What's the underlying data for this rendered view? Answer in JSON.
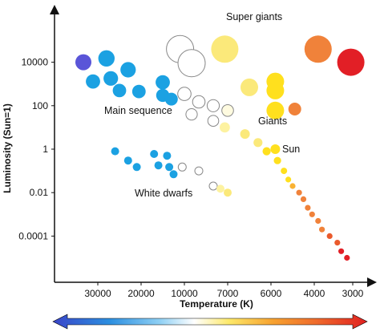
{
  "chart_data": {
    "type": "scatter",
    "xlabel": "Temperature (K)",
    "ylabel": "Luminosity (Sun=1)",
    "x_scale": "reversed",
    "y_scale": "log",
    "x_ticks": [
      30000,
      20000,
      10000,
      7000,
      6000,
      4000,
      3000
    ],
    "x_tick_labels": [
      "30000",
      "20000",
      "10000",
      "7000",
      "6000",
      "4000",
      "3000"
    ],
    "y_ticks": [
      0.0001,
      0.01,
      1,
      100,
      10000
    ],
    "y_tick_labels": [
      "0.0001",
      "0.01",
      "1",
      "100",
      "10000"
    ],
    "grid": false,
    "annotations": [
      "Super giants",
      "Main sequence",
      "Giants",
      "Sun",
      "White dwarfs"
    ],
    "colorbar": {
      "from_color": "#3050c8",
      "to_color": "#e02020",
      "direction": "hot to cool, both ends arrowed"
    },
    "groups": [
      {
        "label": "Super giants",
        "points": [
          {
            "x": 11000,
            "y": 40000,
            "r": "large",
            "color": "#ffffff"
          },
          {
            "x": 9500,
            "y": 9000,
            "r": "large",
            "color": "#ffffff"
          },
          {
            "x": 7200,
            "y": 40000,
            "r": "large",
            "color": "#fbe97a"
          },
          {
            "x": 3900,
            "y": 40000,
            "r": "large",
            "color": "#f0823a"
          },
          {
            "x": 3050,
            "y": 10000,
            "r": "large",
            "color": "#e21f26"
          }
        ]
      },
      {
        "label": "Giants",
        "points": [
          {
            "x": 6500,
            "y": 700,
            "r": "medium",
            "color": "#fbe97a"
          },
          {
            "x": 5800,
            "y": 1300,
            "r": "medium",
            "color": "#ffe01e"
          },
          {
            "x": 5800,
            "y": 500,
            "r": "medium",
            "color": "#ffe01e"
          },
          {
            "x": 5800,
            "y": 60,
            "r": "medium",
            "color": "#ffe01e"
          },
          {
            "x": 4900,
            "y": 70,
            "r": "small",
            "color": "#f0823a"
          }
        ]
      },
      {
        "label": "Main sequence",
        "points": [
          {
            "x": 33000,
            "y": 10000,
            "color": "#5a55d8"
          },
          {
            "x": 28000,
            "y": 15000,
            "color": "#1ba1e2"
          },
          {
            "x": 23000,
            "y": 4500,
            "color": "#1ba1e2"
          },
          {
            "x": 31000,
            "y": 1300,
            "color": "#1ba1e2"
          },
          {
            "x": 25000,
            "y": 500,
            "color": "#1ba1e2"
          },
          {
            "x": 20500,
            "y": 450,
            "color": "#1ba1e2"
          },
          {
            "x": 27000,
            "y": 1800,
            "color": "#1ba1e2"
          },
          {
            "x": 15000,
            "y": 1200,
            "color": "#1ba1e2"
          },
          {
            "x": 15000,
            "y": 300,
            "color": "#1ba1e2"
          },
          {
            "x": 13000,
            "y": 200,
            "color": "#1ba1e2"
          },
          {
            "x": 10000,
            "y": 350,
            "color": "#ffffff"
          },
          {
            "x": 9000,
            "y": 150,
            "color": "#ffffff"
          },
          {
            "x": 8000,
            "y": 100,
            "color": "#ffffff"
          },
          {
            "x": 7000,
            "y": 60,
            "color": "#fffbe0"
          },
          {
            "x": 9500,
            "y": 40,
            "color": "#ffffff"
          },
          {
            "x": 8000,
            "y": 20,
            "color": "#ffffff"
          },
          {
            "x": 7200,
            "y": 10,
            "color": "#fdf2a0"
          },
          {
            "x": 6600,
            "y": 5,
            "color": "#fbe97a"
          },
          {
            "x": 6300,
            "y": 2,
            "color": "#fbe97a"
          },
          {
            "x": 6100,
            "y": 0.8,
            "color": "#ffe01e"
          },
          {
            "x": 5700,
            "y": 0.3,
            "color": "#ffe01e"
          },
          {
            "x": 5400,
            "y": 0.1,
            "color": "#ffe01e"
          },
          {
            "x": 5200,
            "y": 0.04,
            "color": "#ffe01e"
          },
          {
            "x": 5000,
            "y": 0.02,
            "color": "#f9b233"
          },
          {
            "x": 4700,
            "y": 0.01,
            "color": "#f0823a"
          },
          {
            "x": 4500,
            "y": 0.005,
            "color": "#f0823a"
          },
          {
            "x": 4300,
            "y": 0.002,
            "color": "#f0823a"
          },
          {
            "x": 4100,
            "y": 0.001,
            "color": "#f0823a"
          },
          {
            "x": 3900,
            "y": 0.0005,
            "color": "#f0823a"
          },
          {
            "x": 3800,
            "y": 0.0002,
            "color": "#f0823a"
          },
          {
            "x": 3600,
            "y": 0.0001,
            "color": "#ea5a2c"
          },
          {
            "x": 3400,
            "y": 5e-05,
            "color": "#ea5a2c"
          },
          {
            "x": 3300,
            "y": 2e-05,
            "color": "#e21f26"
          },
          {
            "x": 3150,
            "y": 1e-05,
            "color": "#e21f26"
          }
        ]
      },
      {
        "label": "Sun",
        "points": [
          {
            "x": 5800,
            "y": 1,
            "color": "#ffe01e"
          }
        ]
      },
      {
        "label": "White dwarfs",
        "points": [
          {
            "x": 26000,
            "y": 0.8,
            "color": "#1ba1e2"
          },
          {
            "x": 23000,
            "y": 0.3,
            "color": "#1ba1e2"
          },
          {
            "x": 21000,
            "y": 0.15,
            "color": "#1ba1e2"
          },
          {
            "x": 17000,
            "y": 0.6,
            "color": "#1ba1e2"
          },
          {
            "x": 16000,
            "y": 0.18,
            "color": "#1ba1e2"
          },
          {
            "x": 14000,
            "y": 0.5,
            "color": "#1ba1e2"
          },
          {
            "x": 13500,
            "y": 0.15,
            "color": "#1ba1e2"
          },
          {
            "x": 12500,
            "y": 0.07,
            "color": "#1ba1e2"
          },
          {
            "x": 10500,
            "y": 0.15,
            "color": "#ffffff"
          },
          {
            "x": 9000,
            "y": 0.1,
            "color": "#ffffff"
          },
          {
            "x": 8000,
            "y": 0.02,
            "color": "#ffffff"
          },
          {
            "x": 7500,
            "y": 0.015,
            "color": "#fdf2a0"
          },
          {
            "x": 7000,
            "y": 0.01,
            "color": "#fbe97a"
          }
        ]
      }
    ]
  }
}
